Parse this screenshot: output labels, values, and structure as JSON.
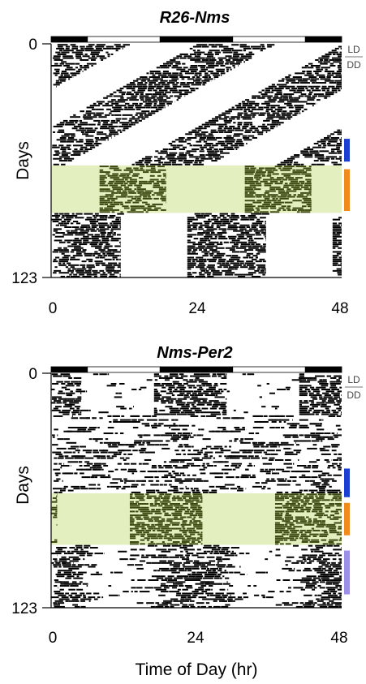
{
  "chart_data": [
    {
      "type": "heatmap",
      "subtype": "double-plotted actogram",
      "title": "R26-Nms",
      "ylabel": "Days",
      "xlabel": "",
      "x_ticks": [
        0,
        24,
        48
      ],
      "y_ticks": [
        0,
        123
      ],
      "xlim": [
        0,
        48
      ],
      "ylim": [
        0,
        123
      ],
      "light_dark_bar": [
        {
          "start": 0,
          "end": 6,
          "state": "dark"
        },
        {
          "start": 6,
          "end": 18,
          "state": "light"
        },
        {
          "start": 18,
          "end": 30,
          "state": "dark"
        },
        {
          "start": 30,
          "end": 42,
          "state": "light"
        },
        {
          "start": 42,
          "end": 48,
          "state": "dark"
        }
      ],
      "legend_labels": [
        "LD",
        "DD"
      ],
      "legend_divider_day": 4,
      "highlight_band": {
        "day_start": 64,
        "day_end": 89,
        "color": "#e4efc0"
      },
      "side_markers": [
        {
          "day_start": 50,
          "day_end": 62,
          "color": "#1a3fd1"
        },
        {
          "day_start": 66,
          "day_end": 88,
          "color": "#f08a1c"
        }
      ],
      "activity": {
        "onset_day0": 0,
        "period_free_run_hr": 23.45,
        "period_late_hr": 24.0,
        "period_change_day": 90,
        "active_duration_hr": 13,
        "band_duration_hr": 11,
        "band_onset_hr": 8
      }
    },
    {
      "type": "heatmap",
      "subtype": "double-plotted actogram",
      "title": "Nms-Per2",
      "ylabel": "Days",
      "xlabel": "Time of Day (hr)",
      "x_ticks": [
        0,
        24,
        48
      ],
      "y_ticks": [
        0,
        123
      ],
      "xlim": [
        0,
        48
      ],
      "ylim": [
        0,
        123
      ],
      "light_dark_bar": [
        {
          "start": 0,
          "end": 6,
          "state": "dark"
        },
        {
          "start": 6,
          "end": 18,
          "state": "light"
        },
        {
          "start": 18,
          "end": 30,
          "state": "dark"
        },
        {
          "start": 30,
          "end": 42,
          "state": "light"
        },
        {
          "start": 42,
          "end": 48,
          "state": "dark"
        }
      ],
      "legend_labels": [
        "LD",
        "DD"
      ],
      "legend_divider_day": 4,
      "highlight_band": {
        "day_start": 63,
        "day_end": 90,
        "color": "#e4efc0"
      },
      "side_markers": [
        {
          "day_start": 50,
          "day_end": 65,
          "color": "#1a3fd1"
        },
        {
          "day_start": 68,
          "day_end": 85,
          "color": "#f08a1c"
        },
        {
          "day_start": 93,
          "day_end": 116,
          "color": "#9b8fe8"
        }
      ],
      "activity": {
        "onset_hr": 17,
        "active_duration_hr": 12,
        "arrhythmic_start_day": 22,
        "arrhythmic_end_day": 60,
        "band_onset_hr": 13,
        "band_duration_hr": 12
      }
    }
  ]
}
